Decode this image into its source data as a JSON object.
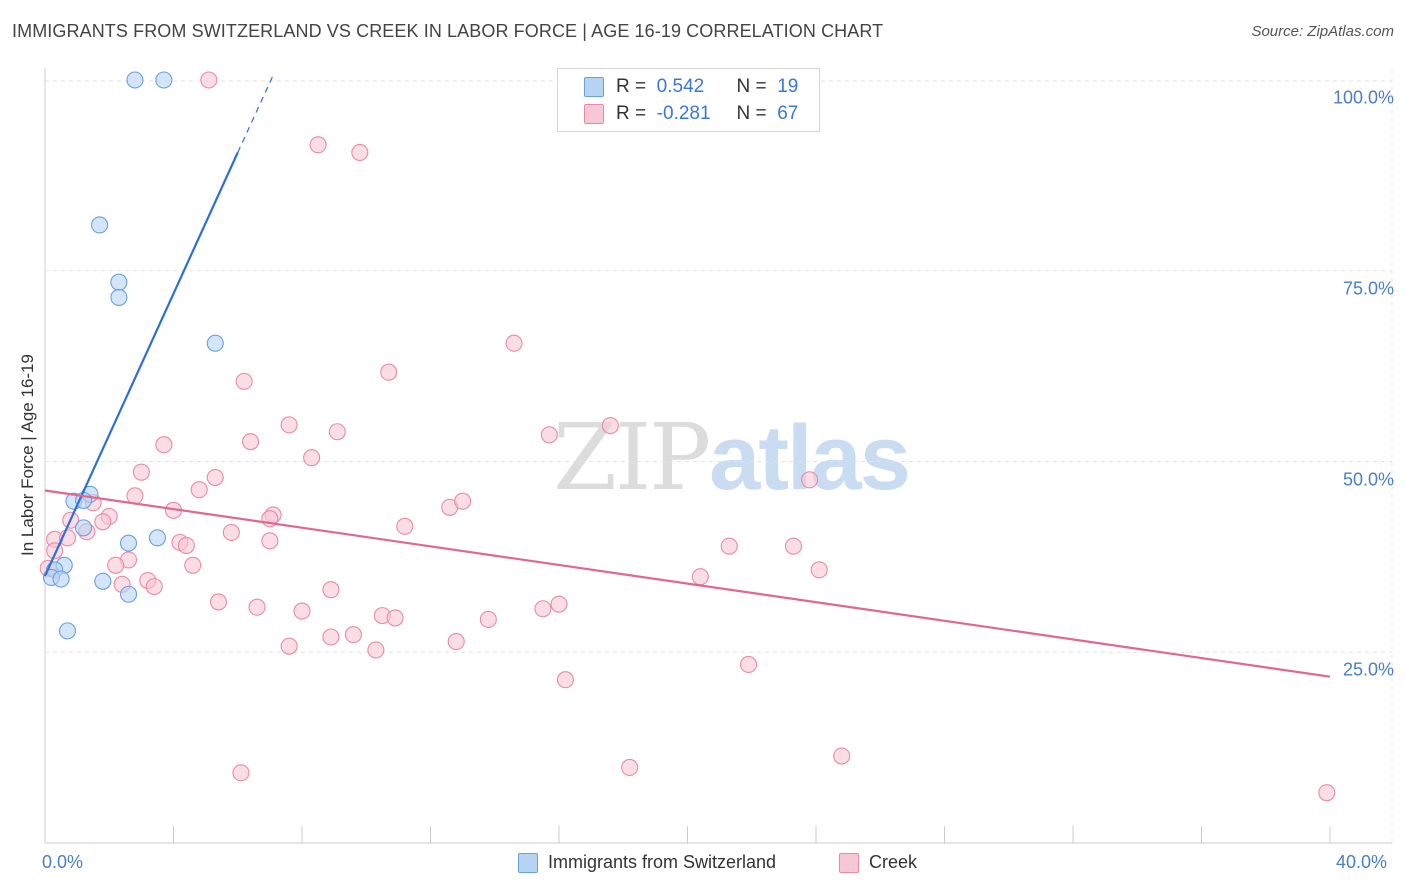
{
  "title": "IMMIGRANTS FROM SWITZERLAND VS CREEK IN LABOR FORCE | AGE 16-19 CORRELATION CHART",
  "source": "Source: ZipAtlas.com",
  "watermark": {
    "zip": "ZIP",
    "atlas": "atlas"
  },
  "legend": {
    "rows": [
      {
        "r_label": "R =",
        "r_value": "0.542",
        "n_label": "N =",
        "n_value": "19"
      },
      {
        "r_label": "R =",
        "r_value": "-0.281",
        "n_label": "N =",
        "n_value": "67"
      }
    ]
  },
  "bottom_legend": [
    {
      "label": "Immigrants from Switzerland"
    },
    {
      "label": "Creek"
    }
  ],
  "colors": {
    "series1_fill": "#b8d4f4",
    "series1_stroke": "#6a9fe0",
    "series1_line": "#2f6fd0",
    "series2_fill": "#f8c7d6",
    "series2_stroke": "#e88aa8",
    "series2_line": "#e06890",
    "grid": "#e3e3e3",
    "axis": "#cccccc",
    "tick_text": "#4a7fc8"
  },
  "chart_data": {
    "type": "scatter",
    "title": "IMMIGRANTS FROM SWITZERLAND VS CREEK IN LABOR FORCE | AGE 16-19 CORRELATION CHART",
    "xlabel": "",
    "ylabel": "In Labor Force | Age 16-19",
    "xlim": [
      0,
      40
    ],
    "ylim": [
      0,
      104
    ],
    "x_tick_labels": [
      "0.0%",
      "40.0%"
    ],
    "y_ticks": [
      25,
      50,
      75,
      100
    ],
    "y_tick_labels": [
      "25.0%",
      "50.0%",
      "75.0%",
      "100.0%"
    ],
    "grid": true,
    "series": [
      {
        "name": "Immigrants from Switzerland",
        "R": 0.542,
        "N": 19,
        "trend": {
          "x0": 0.0,
          "y0": 35.0,
          "x1": 6.0,
          "y1": 90.5,
          "dash_to_x": 7.1,
          "dash_to_y": 100.6
        },
        "points": [
          [
            2.8,
            100.0
          ],
          [
            3.7,
            100.0
          ],
          [
            1.7,
            81.0
          ],
          [
            2.3,
            73.5
          ],
          [
            2.3,
            71.5
          ],
          [
            5.3,
            65.5
          ],
          [
            1.4,
            45.7
          ],
          [
            0.9,
            44.8
          ],
          [
            1.2,
            44.9
          ],
          [
            1.2,
            41.3
          ],
          [
            3.5,
            40.0
          ],
          [
            2.6,
            39.3
          ],
          [
            0.6,
            36.4
          ],
          [
            0.3,
            35.8
          ],
          [
            0.2,
            34.8
          ],
          [
            0.5,
            34.6
          ],
          [
            1.8,
            34.3
          ],
          [
            2.6,
            32.6
          ],
          [
            0.7,
            27.8
          ]
        ]
      },
      {
        "name": "Creek",
        "R": -0.281,
        "N": 67,
        "trend": {
          "x0": 0.0,
          "y0": 46.2,
          "x1": 40.0,
          "y1": 21.8
        },
        "points": [
          [
            5.1,
            100.0
          ],
          [
            8.5,
            91.5
          ],
          [
            9.8,
            90.5
          ],
          [
            14.6,
            65.5
          ],
          [
            6.2,
            60.5
          ],
          [
            10.7,
            61.7
          ],
          [
            7.6,
            54.8
          ],
          [
            3.7,
            52.2
          ],
          [
            6.4,
            52.6
          ],
          [
            8.3,
            50.5
          ],
          [
            9.1,
            53.9
          ],
          [
            17.6,
            54.7
          ],
          [
            15.7,
            53.5
          ],
          [
            3.0,
            48.6
          ],
          [
            5.3,
            47.9
          ],
          [
            23.8,
            47.6
          ],
          [
            4.8,
            46.3
          ],
          [
            2.8,
            45.5
          ],
          [
            12.6,
            44.0
          ],
          [
            13.0,
            44.8
          ],
          [
            1.5,
            44.6
          ],
          [
            4.0,
            43.6
          ],
          [
            7.1,
            43.0
          ],
          [
            2.0,
            42.8
          ],
          [
            7.0,
            42.5
          ],
          [
            0.8,
            42.3
          ],
          [
            1.8,
            42.1
          ],
          [
            11.2,
            41.5
          ],
          [
            1.3,
            40.8
          ],
          [
            5.8,
            40.7
          ],
          [
            0.3,
            39.8
          ],
          [
            4.2,
            39.4
          ],
          [
            4.4,
            39.0
          ],
          [
            7.0,
            39.6
          ],
          [
            0.7,
            40.0
          ],
          [
            21.3,
            38.9
          ],
          [
            23.3,
            38.9
          ],
          [
            0.3,
            38.3
          ],
          [
            2.6,
            37.1
          ],
          [
            2.2,
            36.4
          ],
          [
            4.6,
            36.4
          ],
          [
            24.1,
            35.8
          ],
          [
            20.4,
            34.9
          ],
          [
            3.2,
            34.4
          ],
          [
            2.4,
            33.9
          ],
          [
            3.4,
            33.6
          ],
          [
            8.9,
            33.2
          ],
          [
            5.4,
            31.6
          ],
          [
            6.6,
            30.9
          ],
          [
            8.0,
            30.4
          ],
          [
            15.5,
            30.7
          ],
          [
            16.0,
            31.3
          ],
          [
            10.5,
            29.8
          ],
          [
            10.9,
            29.5
          ],
          [
            13.8,
            29.3
          ],
          [
            9.6,
            27.3
          ],
          [
            8.9,
            27.0
          ],
          [
            12.8,
            26.4
          ],
          [
            7.6,
            25.8
          ],
          [
            10.3,
            25.3
          ],
          [
            21.9,
            23.4
          ],
          [
            16.2,
            21.4
          ],
          [
            6.1,
            9.2
          ],
          [
            18.2,
            9.9
          ],
          [
            24.8,
            11.4
          ],
          [
            39.9,
            6.6
          ],
          [
            0.1,
            36.0
          ]
        ]
      }
    ]
  }
}
